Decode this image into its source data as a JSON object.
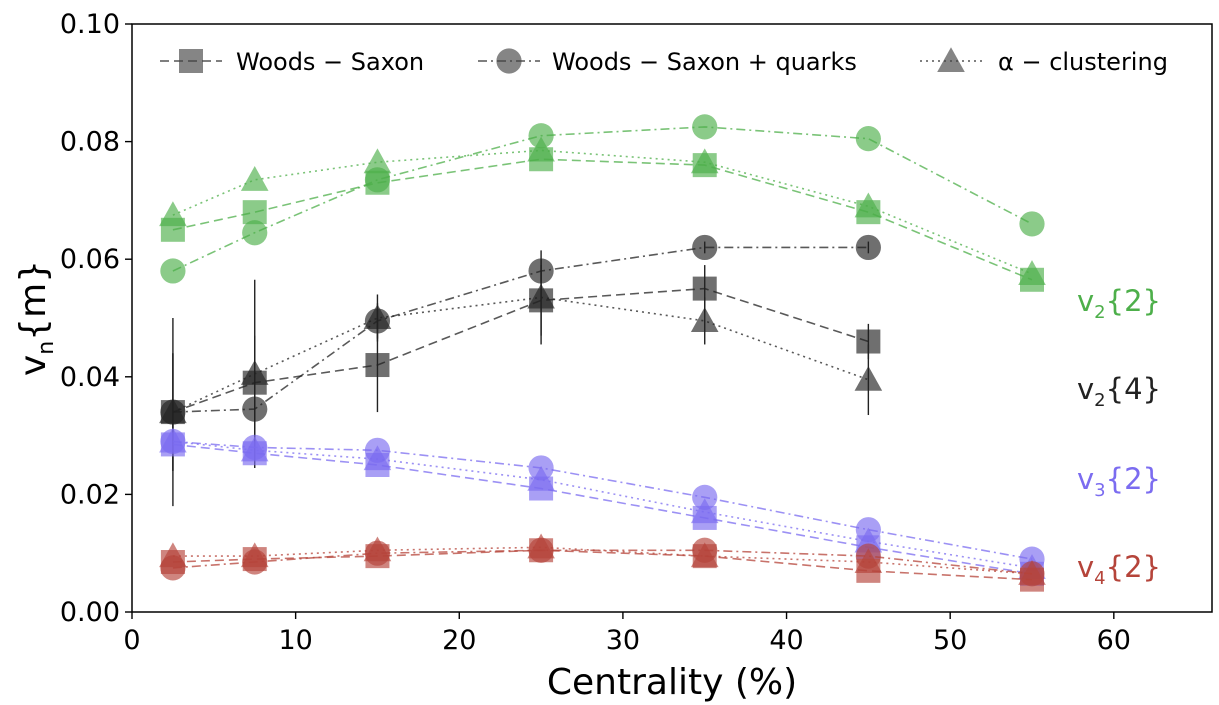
{
  "chart_data": {
    "type": "line",
    "title": "",
    "xlabel": "Centrality (%)",
    "ylabel_main": "v",
    "ylabel_sub": "n",
    "ylabel_tail": "{m}",
    "xlim": [
      0,
      66
    ],
    "ylim": [
      0,
      0.1
    ],
    "xticks": [
      0,
      10,
      20,
      30,
      40,
      50,
      60
    ],
    "yticks": [
      0.0,
      0.02,
      0.04,
      0.06,
      0.08,
      0.1
    ],
    "ytick_labels": [
      "0.00",
      "0.02",
      "0.04",
      "0.06",
      "0.08",
      "0.10"
    ],
    "grid": false,
    "legend_position": "top",
    "legend": [
      {
        "name": "Woods − Saxon",
        "marker": "square",
        "dash": "dashed"
      },
      {
        "name": "Woods − Saxon + quarks",
        "marker": "circle",
        "dash": "dashdot"
      },
      {
        "name": "α − clustering",
        "marker": "triangle",
        "dash": "dotted"
      }
    ],
    "groups": [
      {
        "label_main": "v",
        "label_sub": "2",
        "label_tail": "{2}",
        "color": "#4daf4a",
        "series": [
          {
            "model": "Woods − Saxon",
            "marker": "square",
            "dash": "dashed",
            "x": [
              2.5,
              7.5,
              15,
              25,
              35,
              45,
              55
            ],
            "y": [
              0.065,
              0.068,
              0.073,
              0.077,
              0.076,
              0.068,
              0.0565
            ],
            "err": null
          },
          {
            "model": "Woods − Saxon + quarks",
            "marker": "circle",
            "dash": "dashdot",
            "x": [
              2.5,
              7.5,
              15,
              25,
              35,
              45,
              55
            ],
            "y": [
              0.058,
              0.0645,
              0.0735,
              0.081,
              0.0825,
              0.0805,
              0.066
            ],
            "err": null
          },
          {
            "model": "α − clustering",
            "marker": "triangle",
            "dash": "dotted",
            "x": [
              2.5,
              7.5,
              15,
              25,
              35,
              45,
              55
            ],
            "y": [
              0.0675,
              0.0735,
              0.0765,
              0.0785,
              0.0765,
              0.069,
              0.0575
            ],
            "err": null
          }
        ]
      },
      {
        "label_main": "v",
        "label_sub": "2",
        "label_tail": "{4}",
        "color": "#222222",
        "series": [
          {
            "model": "Woods − Saxon",
            "marker": "square",
            "dash": "dashed",
            "x": [
              2.5,
              7.5,
              15,
              25,
              35,
              45
            ],
            "y": [
              0.034,
              0.039,
              0.042,
              0.053,
              0.055,
              0.046
            ],
            "err": [
              0.01,
              0.008,
              0.008,
              0.006,
              0.004,
              0.003
            ]
          },
          {
            "model": "Woods − Saxon + quarks",
            "marker": "circle",
            "dash": "dashdot",
            "x": [
              2.5,
              7.5,
              15,
              25,
              35,
              45
            ],
            "y": [
              0.034,
              0.0345,
              0.0495,
              0.058,
              0.062,
              0.062
            ],
            "err": [
              0.016,
              0.006,
              0.003,
              0.002,
              0.001,
              0.001
            ]
          },
          {
            "model": "α − clustering",
            "marker": "triangle",
            "dash": "dotted",
            "x": [
              2.5,
              7.5,
              15,
              25,
              35,
              45
            ],
            "y": [
              0.034,
              0.0405,
              0.05,
              0.0535,
              0.0495,
              0.0395
            ],
            "err": [
              0.01,
              0.016,
              0.004,
              0.008,
              0.004,
              0.006
            ]
          }
        ]
      },
      {
        "label_main": "v",
        "label_sub": "3",
        "label_tail": "{2}",
        "color": "#7b6cf0",
        "series": [
          {
            "model": "Woods − Saxon",
            "marker": "square",
            "dash": "dashed",
            "x": [
              2.5,
              7.5,
              15,
              25,
              35,
              45,
              55
            ],
            "y": [
              0.0285,
              0.027,
              0.025,
              0.021,
              0.016,
              0.011,
              0.0065
            ],
            "err": null
          },
          {
            "model": "Woods − Saxon + quarks",
            "marker": "circle",
            "dash": "dashdot",
            "x": [
              2.5,
              7.5,
              15,
              25,
              35,
              45,
              55
            ],
            "y": [
              0.029,
              0.028,
              0.0275,
              0.0245,
              0.0195,
              0.014,
              0.009
            ],
            "err": null
          },
          {
            "model": "α − clustering",
            "marker": "triangle",
            "dash": "dotted",
            "x": [
              2.5,
              7.5,
              15,
              25,
              35,
              45,
              55
            ],
            "y": [
              0.029,
              0.0275,
              0.026,
              0.0225,
              0.017,
              0.012,
              0.0075
            ],
            "err": null
          }
        ]
      },
      {
        "label_main": "v",
        "label_sub": "4",
        "label_tail": "{2}",
        "color": "#b5443a",
        "series": [
          {
            "model": "Woods − Saxon",
            "marker": "square",
            "dash": "dashed",
            "x": [
              2.5,
              7.5,
              15,
              25,
              35,
              45,
              55
            ],
            "y": [
              0.0085,
              0.009,
              0.0095,
              0.0105,
              0.0095,
              0.007,
              0.0055
            ],
            "err": null
          },
          {
            "model": "Woods − Saxon + quarks",
            "marker": "circle",
            "dash": "dashdot",
            "x": [
              2.5,
              7.5,
              15,
              25,
              35,
              45,
              55
            ],
            "y": [
              0.0075,
              0.0085,
              0.01,
              0.0105,
              0.0105,
              0.0095,
              0.0065
            ],
            "err": null
          },
          {
            "model": "α − clustering",
            "marker": "triangle",
            "dash": "dotted",
            "x": [
              2.5,
              7.5,
              15,
              25,
              35,
              45,
              55
            ],
            "y": [
              0.0095,
              0.0095,
              0.0105,
              0.011,
              0.0095,
              0.0085,
              0.0065
            ],
            "err": null
          }
        ]
      }
    ]
  }
}
